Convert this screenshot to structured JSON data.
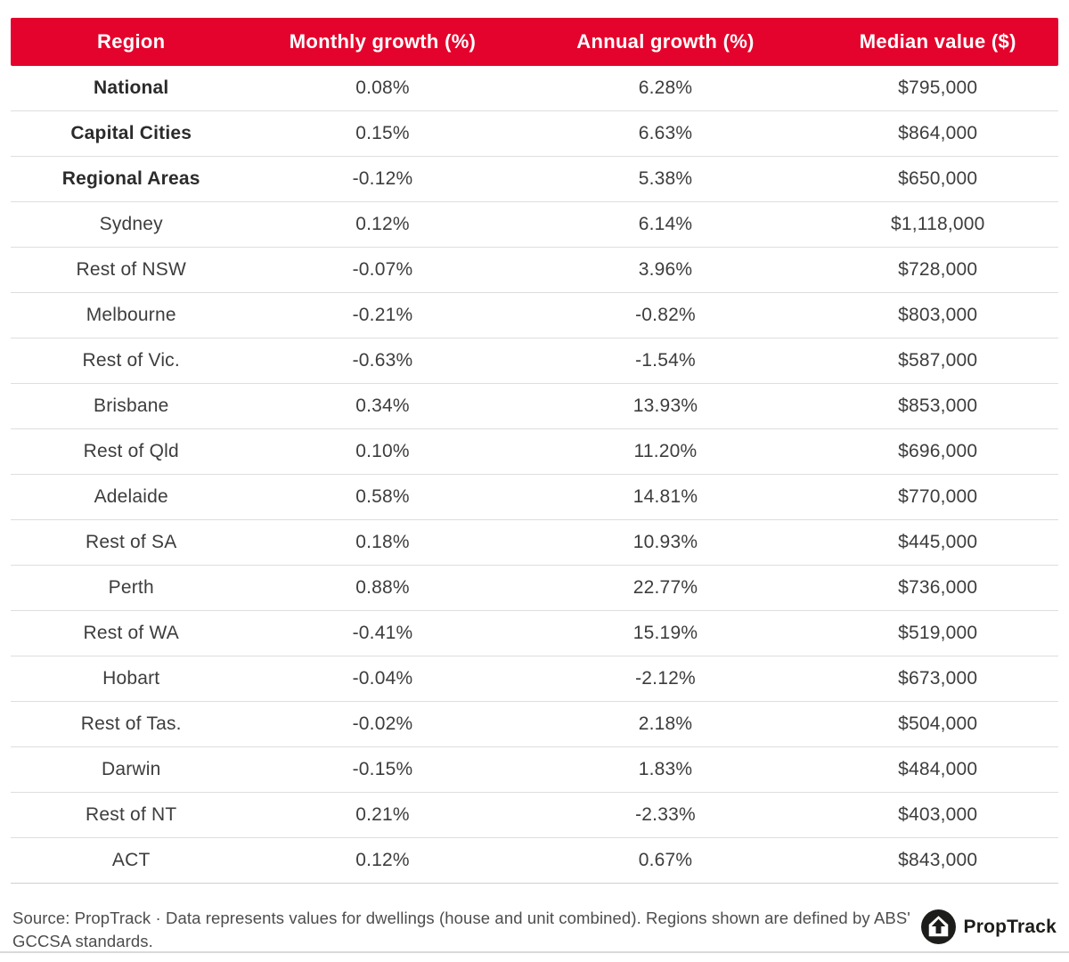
{
  "colors": {
    "header_bg": "#E4032C",
    "header_text": "#FFFFFF",
    "row_text": "#3D3D3D",
    "bold_row_text": "#2B2B2B",
    "divider": "#DEDEDE",
    "footer_text": "#4D4D4D",
    "logo_black": "#1D1D1B"
  },
  "table": {
    "headers": [
      "Region",
      "Monthly growth (%)",
      "Annual growth (%)",
      "Median value ($)"
    ],
    "rows": [
      {
        "region": "National",
        "monthly": "0.08%",
        "annual": "6.28%",
        "median": "$795,000",
        "bold": true
      },
      {
        "region": "Capital Cities",
        "monthly": "0.15%",
        "annual": "6.63%",
        "median": "$864,000",
        "bold": true
      },
      {
        "region": "Regional Areas",
        "monthly": "-0.12%",
        "annual": "5.38%",
        "median": "$650,000",
        "bold": true
      },
      {
        "region": "Sydney",
        "monthly": "0.12%",
        "annual": "6.14%",
        "median": "$1,118,000",
        "bold": false
      },
      {
        "region": "Rest of NSW",
        "monthly": "-0.07%",
        "annual": "3.96%",
        "median": "$728,000",
        "bold": false
      },
      {
        "region": "Melbourne",
        "monthly": "-0.21%",
        "annual": "-0.82%",
        "median": "$803,000",
        "bold": false
      },
      {
        "region": "Rest of Vic.",
        "monthly": "-0.63%",
        "annual": "-1.54%",
        "median": "$587,000",
        "bold": false
      },
      {
        "region": "Brisbane",
        "monthly": "0.34%",
        "annual": "13.93%",
        "median": "$853,000",
        "bold": false
      },
      {
        "region": "Rest of Qld",
        "monthly": "0.10%",
        "annual": "11.20%",
        "median": "$696,000",
        "bold": false
      },
      {
        "region": "Adelaide",
        "monthly": "0.58%",
        "annual": "14.81%",
        "median": "$770,000",
        "bold": false
      },
      {
        "region": "Rest of SA",
        "monthly": "0.18%",
        "annual": "10.93%",
        "median": "$445,000",
        "bold": false
      },
      {
        "region": "Perth",
        "monthly": "0.88%",
        "annual": "22.77%",
        "median": "$736,000",
        "bold": false
      },
      {
        "region": "Rest of WA",
        "monthly": "-0.41%",
        "annual": "15.19%",
        "median": "$519,000",
        "bold": false
      },
      {
        "region": "Hobart",
        "monthly": "-0.04%",
        "annual": "-2.12%",
        "median": "$673,000",
        "bold": false
      },
      {
        "region": "Rest of Tas.",
        "monthly": "-0.02%",
        "annual": "2.18%",
        "median": "$504,000",
        "bold": false
      },
      {
        "region": "Darwin",
        "monthly": "-0.15%",
        "annual": "1.83%",
        "median": "$484,000",
        "bold": false
      },
      {
        "region": "Rest of NT",
        "monthly": "0.21%",
        "annual": "-2.33%",
        "median": "$403,000",
        "bold": false
      },
      {
        "region": "ACT",
        "monthly": "0.12%",
        "annual": "0.67%",
        "median": "$843,000",
        "bold": false
      }
    ]
  },
  "footer": {
    "source_text": "Source: PropTrack · Data represents values for dwellings (house and unit combined). Regions shown are defined by ABS' GCCSA standards.",
    "brand_name": "PropTrack"
  },
  "chart_data": {
    "type": "table",
    "title": "",
    "columns": [
      "Region",
      "Monthly growth (%)",
      "Annual growth (%)",
      "Median value ($)"
    ],
    "rows": [
      [
        "National",
        0.08,
        6.28,
        795000
      ],
      [
        "Capital Cities",
        0.15,
        6.63,
        864000
      ],
      [
        "Regional Areas",
        -0.12,
        5.38,
        650000
      ],
      [
        "Sydney",
        0.12,
        6.14,
        1118000
      ],
      [
        "Rest of NSW",
        -0.07,
        3.96,
        728000
      ],
      [
        "Melbourne",
        -0.21,
        -0.82,
        803000
      ],
      [
        "Rest of Vic.",
        -0.63,
        -1.54,
        587000
      ],
      [
        "Brisbane",
        0.34,
        13.93,
        853000
      ],
      [
        "Rest of Qld",
        0.1,
        11.2,
        696000
      ],
      [
        "Adelaide",
        0.58,
        14.81,
        770000
      ],
      [
        "Rest of SA",
        0.18,
        10.93,
        445000
      ],
      [
        "Perth",
        0.88,
        22.77,
        736000
      ],
      [
        "Rest of WA",
        -0.41,
        15.19,
        519000
      ],
      [
        "Hobart",
        -0.04,
        -2.12,
        673000
      ],
      [
        "Rest of Tas.",
        -0.02,
        2.18,
        504000
      ],
      [
        "Darwin",
        -0.15,
        1.83,
        484000
      ],
      [
        "Rest of NT",
        0.21,
        -2.33,
        403000
      ],
      [
        "ACT",
        0.12,
        0.67,
        843000
      ]
    ],
    "source": "Source: PropTrack · Data represents values for dwellings (house and unit combined). Regions shown are defined by ABS' GCCSA standards."
  }
}
